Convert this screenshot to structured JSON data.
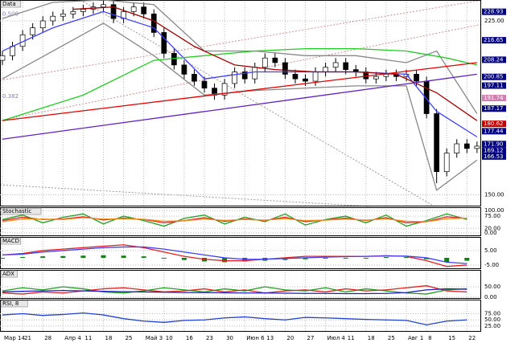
{
  "chart_data": [
    {
      "type": "candlestick",
      "title": "Data",
      "ylim": [
        145,
        234
      ],
      "yticks": [
        {
          "value": 150,
          "label": "150.00"
        },
        {
          "value": 225,
          "label": "225.00"
        }
      ],
      "markers": [
        {
          "value": 228.93,
          "label": "228.93",
          "color": "#000080"
        },
        {
          "value": 216.65,
          "label": "216.65",
          "color": "#000080"
        },
        {
          "value": 208.24,
          "label": "208.24",
          "color": "#000080"
        },
        {
          "value": 200.85,
          "label": "200.85",
          "color": "#000080"
        },
        {
          "value": 197.11,
          "label": "197.11",
          "color": "#000080"
        },
        {
          "value": 191.74,
          "label": "191.74",
          "color": "#d080b0"
        },
        {
          "value": 187.17,
          "label": "187.17",
          "color": "#000080"
        },
        {
          "value": 180.62,
          "label": "180.62",
          "color": "#c00000"
        },
        {
          "value": 177.44,
          "label": "177.44",
          "color": "#000080"
        },
        {
          "value": 171.9,
          "label": "171.90",
          "color": "#000080"
        },
        {
          "value": 169.12,
          "label": "169.12",
          "color": "#000080"
        },
        {
          "value": 166.53,
          "label": "166.53",
          "color": "#000080"
        }
      ],
      "fib_labels": [
        {
          "value": 228,
          "label": "0.500"
        },
        {
          "value": 192.5,
          "label": "0.382"
        }
      ],
      "up_color": "#ffffff",
      "down_color": "#000000",
      "candles": [
        [
          208,
          212,
          206,
          210
        ],
        [
          210,
          216,
          208,
          214
        ],
        [
          214,
          221,
          212,
          219
        ],
        [
          219,
          224,
          217,
          222
        ],
        [
          222,
          227,
          220,
          225
        ],
        [
          225,
          229,
          223,
          227
        ],
        [
          227,
          230,
          225,
          228
        ],
        [
          228,
          231,
          226,
          229
        ],
        [
          229,
          232,
          227,
          230
        ],
        [
          230,
          233,
          228,
          231
        ],
        [
          231,
          234,
          229,
          232
        ],
        [
          232,
          234,
          224,
          226
        ],
        [
          226,
          231,
          224,
          229
        ],
        [
          229,
          233,
          227,
          231
        ],
        [
          231,
          233,
          226,
          228
        ],
        [
          228,
          230,
          218,
          220
        ],
        [
          220,
          222,
          209,
          211
        ],
        [
          211,
          213,
          204,
          206
        ],
        [
          206,
          208,
          200,
          202
        ],
        [
          202,
          204,
          197,
          199
        ],
        [
          199,
          201,
          194,
          196
        ],
        [
          196,
          198,
          191,
          193
        ],
        [
          193,
          200,
          191,
          198
        ],
        [
          198,
          205,
          196,
          203
        ],
        [
          203,
          205,
          198,
          200
        ],
        [
          200,
          207,
          198,
          205
        ],
        [
          205,
          211,
          203,
          209
        ],
        [
          209,
          211,
          205,
          207
        ],
        [
          207,
          209,
          200,
          202
        ],
        [
          202,
          204,
          198,
          200
        ],
        [
          200,
          202,
          197,
          199
        ],
        [
          199,
          205,
          197,
          203
        ],
        [
          203,
          207,
          201,
          205
        ],
        [
          205,
          209,
          203,
          207
        ],
        [
          207,
          209,
          202,
          204
        ],
        [
          204,
          206,
          201,
          203
        ],
        [
          203,
          205,
          198,
          200
        ],
        [
          200,
          203,
          198,
          201
        ],
        [
          201,
          204,
          199,
          202
        ],
        [
          202,
          204,
          199,
          201
        ],
        [
          201,
          204,
          199,
          202
        ],
        [
          202,
          204,
          197,
          199
        ],
        [
          199,
          201,
          183,
          185
        ],
        [
          185,
          187,
          155,
          160
        ],
        [
          160,
          170,
          158,
          168
        ],
        [
          168,
          174,
          166,
          172
        ],
        [
          172,
          174,
          168,
          170
        ],
        [
          170,
          173,
          168,
          171
        ]
      ],
      "series": [
        {
          "color": "#888888",
          "x": [
            0,
            5,
            10,
            15,
            20,
            25,
            30,
            35,
            40,
            43,
            47
          ],
          "values": [
            226,
            233,
            234,
            232,
            212,
            212,
            210,
            210,
            207,
            212,
            185
          ]
        },
        {
          "color": "#888888",
          "x": [
            0,
            5,
            10,
            15,
            20,
            25,
            30,
            35,
            40,
            43,
            47
          ],
          "values": [
            200,
            212,
            224,
            210,
            193,
            195,
            196,
            197,
            197,
            152,
            165
          ]
        },
        {
          "color": "#4040ff",
          "x": [
            0,
            5,
            10,
            15,
            20,
            25,
            30,
            35,
            40,
            43,
            47
          ],
          "values": [
            212,
            222,
            229,
            222,
            200,
            203,
            203,
            203,
            202,
            186,
            175
          ]
        },
        {
          "color": "#22cc22",
          "x": [
            0,
            8,
            15,
            20,
            25,
            30,
            35,
            40,
            44,
            47
          ],
          "values": [
            182,
            193,
            208,
            210,
            212,
            213,
            213,
            212,
            209,
            206
          ]
        },
        {
          "color": "#a00000",
          "x": [
            7,
            11,
            15,
            19,
            23,
            27,
            31,
            35,
            39,
            43,
            47
          ],
          "values": [
            230,
            231,
            225,
            214,
            206,
            204,
            203,
            203,
            202,
            194,
            182
          ]
        },
        {
          "color": "#6020c0",
          "x": [
            0,
            47
          ],
          "values": [
            174,
            202
          ]
        },
        {
          "color": "#e00000",
          "x": [
            0,
            47
          ],
          "values": [
            182,
            207
          ]
        }
      ]
    },
    {
      "type": "line",
      "title": "Stochastic",
      "ylim": [
        -15,
        115
      ],
      "yticks": [
        {
          "value": 100,
          "label": "100.00"
        },
        {
          "value": 75,
          "label": "75.00"
        },
        {
          "value": 20,
          "label": "20.00"
        },
        {
          "value": 0,
          "label": "0.00"
        }
      ],
      "x": [
        0,
        2,
        4,
        6,
        8,
        10,
        12,
        14,
        16,
        18,
        20,
        22,
        24,
        26,
        28,
        30,
        32,
        34,
        36,
        38,
        40,
        42,
        44,
        46
      ],
      "series": [
        {
          "color": "#20a020",
          "values": [
            60,
            80,
            45,
            70,
            85,
            40,
            75,
            55,
            30,
            65,
            80,
            40,
            70,
            50,
            85,
            35,
            60,
            75,
            45,
            80,
            30,
            55,
            85,
            60
          ]
        },
        {
          "color": "#e02020",
          "values": [
            55,
            70,
            60,
            62,
            72,
            58,
            66,
            60,
            45,
            55,
            68,
            52,
            62,
            56,
            70,
            50,
            58,
            66,
            55,
            68,
            45,
            50,
            72,
            65
          ]
        },
        {
          "color": "#f09020",
          "values": [
            50,
            62,
            62,
            60,
            68,
            62,
            63,
            61,
            52,
            54,
            62,
            56,
            60,
            57,
            64,
            55,
            57,
            62,
            57,
            63,
            52,
            50,
            63,
            66
          ]
        }
      ]
    },
    {
      "type": "line",
      "title": "MACD",
      "ylim": [
        -7.8,
        14.4
      ],
      "yticks": [
        {
          "value": 5,
          "label": "5.00"
        },
        {
          "value": -5,
          "label": "-5.00"
        }
      ],
      "x": [
        0,
        2,
        4,
        6,
        8,
        10,
        12,
        14,
        16,
        18,
        20,
        22,
        24,
        26,
        28,
        30,
        32,
        34,
        36,
        38,
        40,
        42,
        44,
        46
      ],
      "series": [
        {
          "color": "#108010",
          "kind": "histogram",
          "values": [
            0,
            0.5,
            1,
            1.2,
            1.5,
            1.8,
            1.5,
            1,
            0,
            -1.5,
            -2.5,
            -3,
            -2.5,
            -2,
            -1.5,
            -1,
            -0.5,
            -0.5,
            0,
            0.5,
            0.5,
            -1,
            -3,
            -2
          ]
        },
        {
          "color": "#e02020",
          "values": [
            2,
            3,
            5,
            6,
            7,
            8,
            9,
            7,
            4,
            1,
            -1,
            -2,
            -2,
            -1,
            0,
            1,
            1,
            1,
            1,
            1.5,
            1,
            -2,
            -6,
            -5
          ]
        },
        {
          "color": "#4040ff",
          "values": [
            2,
            2.5,
            4,
            5,
            6,
            7,
            7.5,
            7.5,
            6,
            4,
            2,
            0,
            -1,
            -1,
            -0.5,
            0,
            0.5,
            0.8,
            1,
            1.2,
            1.2,
            0,
            -3,
            -4
          ]
        }
      ]
    },
    {
      "type": "line",
      "title": "ADX",
      "ylim": [
        -8,
        131
      ],
      "yticks": [
        {
          "value": 50,
          "label": "50.00"
        },
        {
          "value": 0,
          "label": "0.00"
        }
      ],
      "x": [
        0,
        2,
        4,
        6,
        8,
        10,
        12,
        14,
        16,
        18,
        20,
        22,
        24,
        26,
        28,
        30,
        32,
        34,
        36,
        38,
        40,
        42,
        44,
        46
      ],
      "series": [
        {
          "color": "#20a020",
          "values": [
            30,
            45,
            35,
            50,
            40,
            25,
            20,
            30,
            45,
            35,
            25,
            40,
            30,
            50,
            35,
            30,
            45,
            25,
            40,
            30,
            20,
            15,
            35,
            40
          ]
        },
        {
          "color": "#e02020",
          "values": [
            20,
            15,
            25,
            20,
            30,
            40,
            45,
            35,
            25,
            30,
            40,
            25,
            35,
            20,
            30,
            35,
            25,
            40,
            30,
            35,
            45,
            55,
            30,
            25
          ]
        },
        {
          "color": "#2020c0",
          "values": [
            25,
            28,
            30,
            32,
            30,
            28,
            26,
            25,
            24,
            22,
            22,
            21,
            20,
            20,
            19,
            18,
            18,
            17,
            17,
            18,
            22,
            35,
            40,
            38
          ]
        }
      ]
    },
    {
      "type": "line",
      "title": "RSI, 8",
      "ylim": [
        2,
        132
      ],
      "yticks": [
        {
          "value": 75,
          "label": "75.00"
        },
        {
          "value": 50,
          "label": "50.00"
        },
        {
          "value": 25,
          "label": "25.00"
        }
      ],
      "x": [
        0,
        2,
        4,
        6,
        8,
        10,
        12,
        14,
        16,
        18,
        20,
        22,
        24,
        26,
        28,
        30,
        32,
        34,
        36,
        38,
        40,
        42,
        44,
        46
      ],
      "series": [
        {
          "color": "#2040d0",
          "values": [
            70,
            75,
            68,
            72,
            78,
            70,
            55,
            45,
            40,
            48,
            50,
            58,
            62,
            55,
            50,
            60,
            58,
            55,
            52,
            50,
            48,
            30,
            45,
            50
          ]
        }
      ]
    }
  ],
  "x_axis": {
    "xticks": [
      {
        "value": 0,
        "label": "Мар 14"
      },
      {
        "value": 2,
        "label": "21"
      },
      {
        "value": 4,
        "label": "28"
      },
      {
        "value": 6,
        "label": "Апр 4"
      },
      {
        "value": 8,
        "label": "11"
      },
      {
        "value": 10,
        "label": "18"
      },
      {
        "value": 12,
        "label": "25"
      },
      {
        "value": 14,
        "label": "Май 3"
      },
      {
        "value": 16,
        "label": "10"
      },
      {
        "value": 18,
        "label": "16"
      },
      {
        "value": 20,
        "label": "23"
      },
      {
        "value": 22,
        "label": "30"
      },
      {
        "value": 24,
        "label": "Июн 6"
      },
      {
        "value": 26,
        "label": "13"
      },
      {
        "value": 28,
        "label": "20"
      },
      {
        "value": 30,
        "label": "27"
      },
      {
        "value": 32,
        "label": "Июл 4"
      },
      {
        "value": 34,
        "label": "11"
      },
      {
        "value": 36,
        "label": "18"
      },
      {
        "value": 38,
        "label": "25"
      },
      {
        "value": 40,
        "label": "Авг 1"
      },
      {
        "value": 42,
        "label": "8"
      },
      {
        "value": 44,
        "label": "15"
      },
      {
        "value": 46,
        "label": "22"
      }
    ]
  }
}
